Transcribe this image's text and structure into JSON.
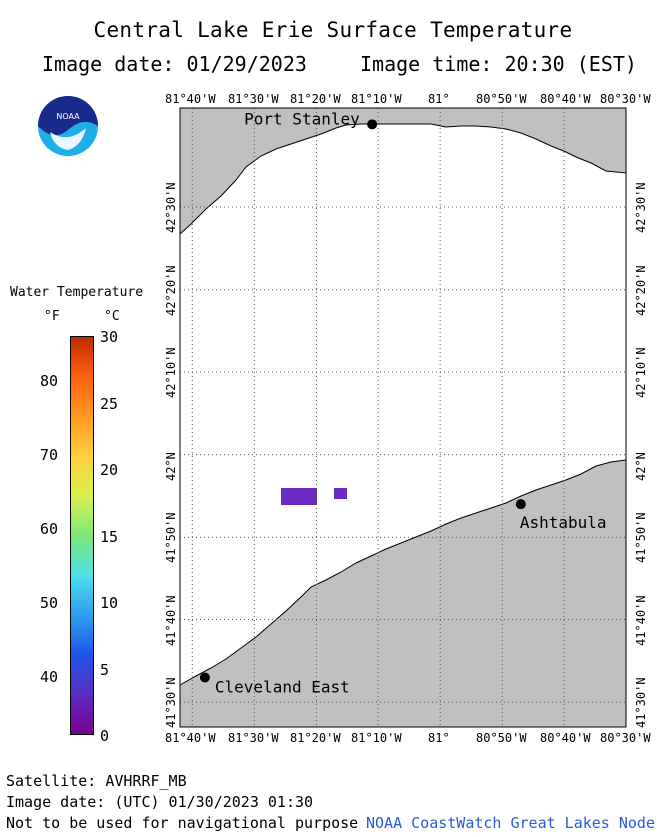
{
  "header": {
    "title": "Central Lake Erie Surface Temperature",
    "image_date": "Image date: 01/29/2023",
    "image_time": "Image time: 20:30 (EST)"
  },
  "logo": {
    "text": "NOAA"
  },
  "map": {
    "lon_ticks": [
      "81°40'W",
      "81°30'W",
      "81°20'W",
      "81°10'W",
      "81°",
      "80°50'W",
      "80°40'W",
      "80°30'W"
    ],
    "lat_ticks": [
      "42°30'N",
      "42°20'N",
      "42°10'N",
      "42°N",
      "41°50'N",
      "41°40'N",
      "41°30'N"
    ],
    "cities": [
      {
        "name": "Port Stanley",
        "lon": -81.183,
        "lat": 42.667
      },
      {
        "name": "Ashtabula",
        "lon": -80.783,
        "lat": 41.9
      },
      {
        "name": "Cleveland East",
        "lon": -81.633,
        "lat": 41.55
      }
    ],
    "land_color": "#c0c0c0",
    "water_color": "#ffffff",
    "grid": true
  },
  "legend": {
    "title": "Water Temperature",
    "unit_f": "°F",
    "unit_c": "°C",
    "f_labels": [
      "80",
      "70",
      "60",
      "50",
      "40"
    ],
    "c_labels": [
      "30",
      "25",
      "20",
      "15",
      "10",
      "5",
      "0"
    ],
    "colors": [
      "#7a0090",
      "#5a2cc4",
      "#1e55e6",
      "#2ea0f0",
      "#4fe0e8",
      "#7ee87a",
      "#d8f050",
      "#ffd040",
      "#ff9a20",
      "#ff6010",
      "#c02a00"
    ]
  },
  "footer": {
    "satellite": "Satellite: AVHRRF_MB",
    "utc_date": "Image date: (UTC) 01/30/2023  01:30",
    "disclaimer": "Not to be used for navigational purpose",
    "credit": "NOAA CoastWatch Great Lakes Node"
  }
}
